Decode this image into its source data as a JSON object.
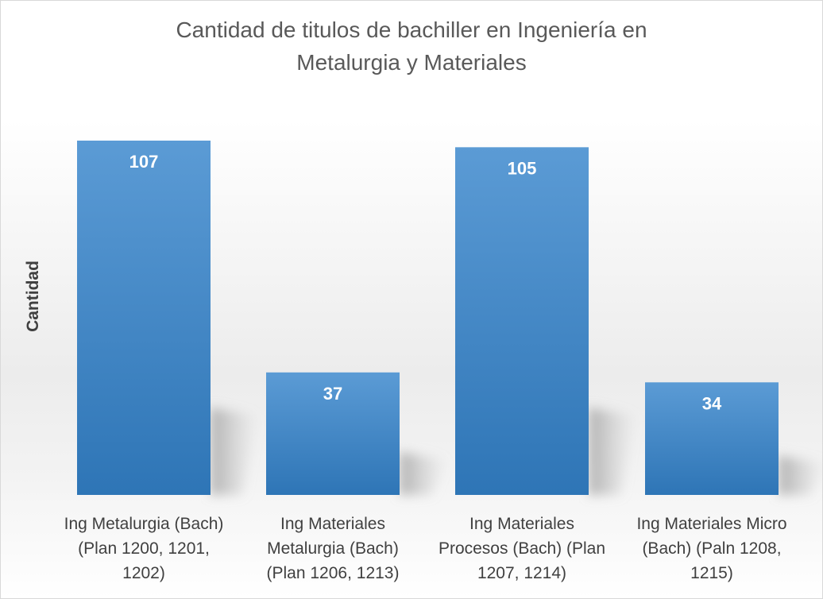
{
  "chart_data": {
    "type": "bar",
    "title": "Cantidad de titulos de bachiller en Ingeniería en Metalurgia y Materiales",
    "title_lines": [
      "Cantidad de titulos de bachiller en Ingeniería en",
      "Metalurgia y Materiales"
    ],
    "ylabel": "Cantidad",
    "xlabel": "",
    "categories": [
      "Ing Metalurgia (Bach) (Plan 1200, 1201, 1202)",
      "Ing Materiales Metalurgia (Bach) (Plan 1206, 1213)",
      "Ing Materiales Procesos (Bach) (Plan 1207, 1214)",
      "Ing Materiales Micro (Bach) (Paln 1208, 1215)"
    ],
    "category_label_lines": [
      [
        "Ing Metalurgia (Bach)",
        "(Plan 1200, 1201,",
        "1202)"
      ],
      [
        "Ing Materiales",
        "Metalurgia (Bach)",
        "(Plan 1206, 1213)"
      ],
      [
        "Ing Materiales",
        "Procesos (Bach) (Plan",
        "1207, 1214)"
      ],
      [
        "Ing Materiales Micro",
        "(Bach) (Paln 1208,",
        "1215)"
      ]
    ],
    "values": [
      107,
      37,
      105,
      34
    ],
    "data_labels": [
      "107",
      "37",
      "105",
      "34"
    ],
    "ylim": [
      0,
      107
    ],
    "grid": false,
    "legend": "none",
    "bar_color": "#5b9bd5",
    "bar_color_dark": "#2e75b6",
    "label_color": "#ffffff"
  }
}
